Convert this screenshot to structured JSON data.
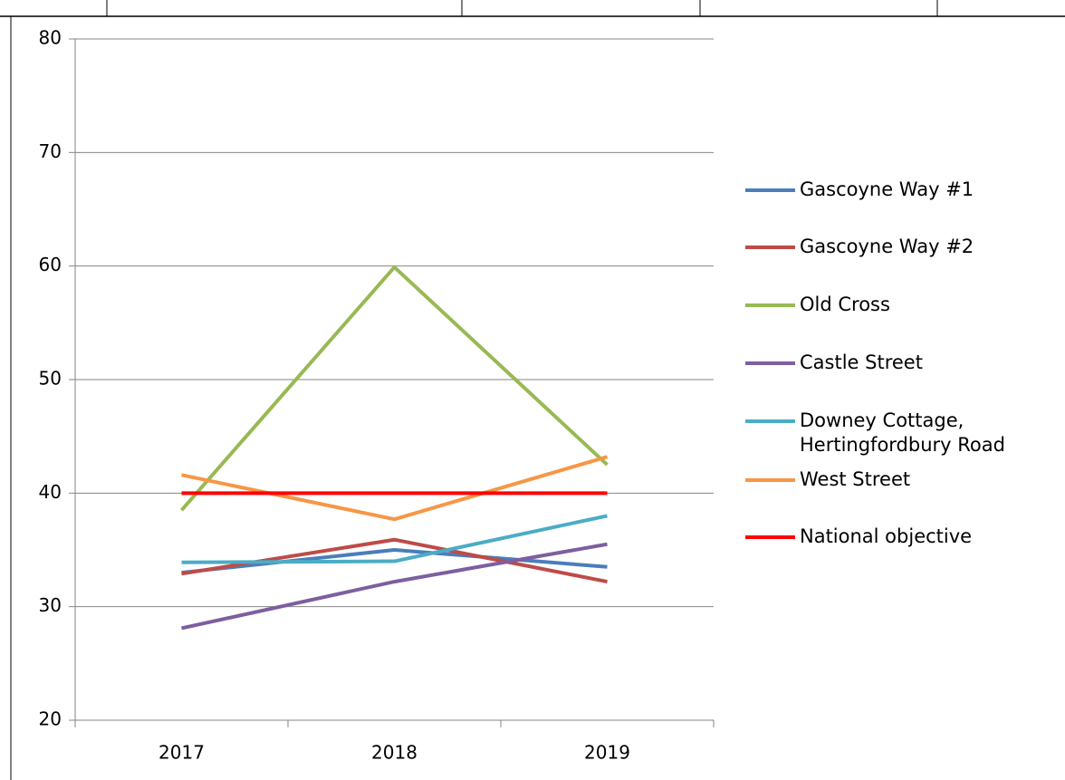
{
  "chart_data": {
    "type": "line",
    "categories": [
      "2017",
      "2018",
      "2019"
    ],
    "series": [
      {
        "name": "Gascoyne Way #1",
        "color": "#4a7ebb",
        "values": [
          33,
          35,
          33.5
        ]
      },
      {
        "name": "Gascoyne Way #2",
        "color": "#be4b48",
        "values": [
          32.9,
          35.9,
          32.2
        ]
      },
      {
        "name": "Old Cross",
        "color": "#98b954",
        "values": [
          38.5,
          59.9,
          42.5
        ]
      },
      {
        "name": "Castle Street",
        "color": "#7d5fa0",
        "values": [
          28.1,
          32.2,
          35.5
        ]
      },
      {
        "name": "Downey Cottage, Hertingfordbury Road",
        "color": "#4bacc6",
        "values": [
          33.9,
          34,
          38
        ]
      },
      {
        "name": "West Street",
        "color": "#f79646",
        "values": [
          41.6,
          37.7,
          43.2
        ]
      },
      {
        "name": "National objective",
        "color": "#ff0000",
        "values": [
          40,
          40,
          40
        ]
      }
    ],
    "ylim": [
      20,
      80
    ],
    "yticks": [
      20,
      30,
      40,
      50,
      60,
      70,
      80
    ],
    "grid": true,
    "legend": "right"
  }
}
